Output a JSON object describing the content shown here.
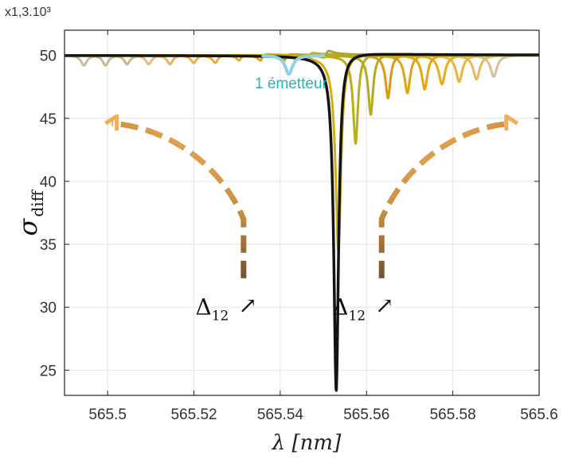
{
  "chart_data": {
    "type": "line",
    "title": "",
    "xlabel": "λ [nm]",
    "ylabel": "σ",
    "ylabel_subscript": "diff",
    "y_multiplier": "x1,3.10³",
    "xlim": [
      565.49,
      565.6
    ],
    "ylim": [
      23,
      52
    ],
    "grid": true,
    "x_ticks": [
      565.5,
      565.52,
      565.54,
      565.56,
      565.58,
      565.6
    ],
    "x_tick_labels": [
      "565.5",
      "565.52",
      "565.54",
      "565.56",
      "565.58",
      "565.6"
    ],
    "y_ticks": [
      25,
      30,
      35,
      40,
      45,
      50
    ],
    "y_tick_labels": [
      "25",
      "30",
      "35",
      "40",
      "45",
      "50"
    ],
    "series": [
      {
        "color": "#141414",
        "dip_x": 565.553,
        "dip_y": 23.4,
        "width": 0.0007,
        "peak": 51.5,
        "lw": 3.5
      },
      {
        "color": "#d2ae14",
        "dip_x": 565.5535,
        "dip_y": 34.5,
        "width": 0.0008,
        "peak": 50.9,
        "lw": 3
      },
      {
        "color": "#b9ad1a",
        "dip_x": 565.5575,
        "dip_y": 43.0,
        "width": 0.0007,
        "peak": 50.5,
        "lw": 3
      },
      {
        "color": "#a8a82e",
        "dip_x": 565.5505,
        "dip_y": 49.9,
        "width": 0.0007,
        "peak": 50.4,
        "lw": 3
      },
      {
        "color": "#b4ab1c",
        "dip_x": 565.561,
        "dip_y": 45.3,
        "width": 0.0007,
        "peak": 50.3,
        "lw": 3
      },
      {
        "color": "#c8a81c",
        "dip_x": 565.5465,
        "dip_y": 49.7,
        "width": 0.0007,
        "peak": 50.3,
        "lw": 3
      },
      {
        "color": "#d89b14",
        "dip_x": 565.565,
        "dip_y": 46.6,
        "width": 0.0007,
        "peak": 50.2,
        "lw": 3
      },
      {
        "color": "#d89c14",
        "dip_x": 565.541,
        "dip_y": 49.6,
        "width": 0.0007,
        "peak": 50.2,
        "lw": 3
      },
      {
        "color": "#e0a314",
        "dip_x": 565.5695,
        "dip_y": 47.0,
        "width": 0.0008,
        "peak": 50.2,
        "lw": 3
      },
      {
        "color": "#e0a21e",
        "dip_x": 565.5355,
        "dip_y": 49.6,
        "width": 0.0007,
        "peak": 50.2,
        "lw": 3
      },
      {
        "color": "#e8a40e",
        "dip_x": 565.5735,
        "dip_y": 47.3,
        "width": 0.0008,
        "peak": 50.15,
        "lw": 3
      },
      {
        "color": "#e6ac32",
        "dip_x": 565.5305,
        "dip_y": 49.6,
        "width": 0.0007,
        "peak": 50.1,
        "lw": 3
      },
      {
        "color": "#e8ae14",
        "dip_x": 565.5775,
        "dip_y": 47.7,
        "width": 0.0009,
        "peak": 50.1,
        "lw": 3
      },
      {
        "color": "#eba939",
        "dip_x": 565.525,
        "dip_y": 49.4,
        "width": 0.0008,
        "peak": 50.1,
        "lw": 3
      },
      {
        "color": "#eab43c",
        "dip_x": 565.5815,
        "dip_y": 47.9,
        "width": 0.0009,
        "peak": 50.1,
        "lw": 3
      },
      {
        "color": "#ebb149",
        "dip_x": 565.52,
        "dip_y": 49.4,
        "width": 0.0008,
        "peak": 50.05,
        "lw": 3
      },
      {
        "color": "#e4b862",
        "dip_x": 565.5855,
        "dip_y": 48.1,
        "width": 0.0009,
        "peak": 50.05,
        "lw": 3
      },
      {
        "color": "#e9b25f",
        "dip_x": 565.5145,
        "dip_y": 49.3,
        "width": 0.0008,
        "peak": 50.05,
        "lw": 3
      },
      {
        "color": "#d9c094",
        "dip_x": 565.5895,
        "dip_y": 48.3,
        "width": 0.0009,
        "peak": 50.05,
        "lw": 3
      },
      {
        "color": "#e4bb7c",
        "dip_x": 565.5095,
        "dip_y": 49.3,
        "width": 0.0008,
        "peak": 50.0,
        "lw": 3
      },
      {
        "color": "#cdb67e",
        "dip_x": 565.5045,
        "dip_y": 49.3,
        "width": 0.0008,
        "peak": 50.0,
        "lw": 3
      },
      {
        "color": "#c8b88f",
        "dip_x": 565.4995,
        "dip_y": 49.2,
        "width": 0.0008,
        "peak": 50.0,
        "lw": 3
      },
      {
        "color": "#c9bc9c",
        "dip_x": 565.4945,
        "dip_y": 49.2,
        "width": 0.0008,
        "peak": 50.0,
        "lw": 3
      }
    ],
    "emitter_curve": {
      "color": "#8fd2e3",
      "dip_x": 565.542,
      "dip_y": 48.5,
      "width": 0.001,
      "x_start": 565.536,
      "x_end": 565.55,
      "lw": 4
    },
    "annotations": [
      {
        "text": "1 émetteur",
        "x": 565.5425,
        "y": 47.4,
        "color": "#2ab0b5"
      }
    ],
    "delta_annotations": [
      {
        "text": "Δ",
        "subscript": "12",
        "arrow": "↗",
        "x": 565.5275,
        "y": 29.4
      },
      {
        "text": "Δ",
        "subscript": "12",
        "arrow": "↗",
        "x": 565.5592,
        "y": 29.4
      }
    ],
    "dashed_arrows": [
      {
        "side": "left",
        "path_x": [
          565.5315,
          565.5315,
          565.526,
          565.5135,
          565.501
        ],
        "path_y": [
          32.3,
          37,
          41.5,
          44.3,
          44.6
        ]
      },
      {
        "side": "right",
        "path_x": [
          565.5635,
          565.5635,
          565.569,
          565.5815,
          565.5935
        ],
        "path_y": [
          32.3,
          37,
          41.5,
          44.3,
          44.6
        ]
      }
    ]
  }
}
